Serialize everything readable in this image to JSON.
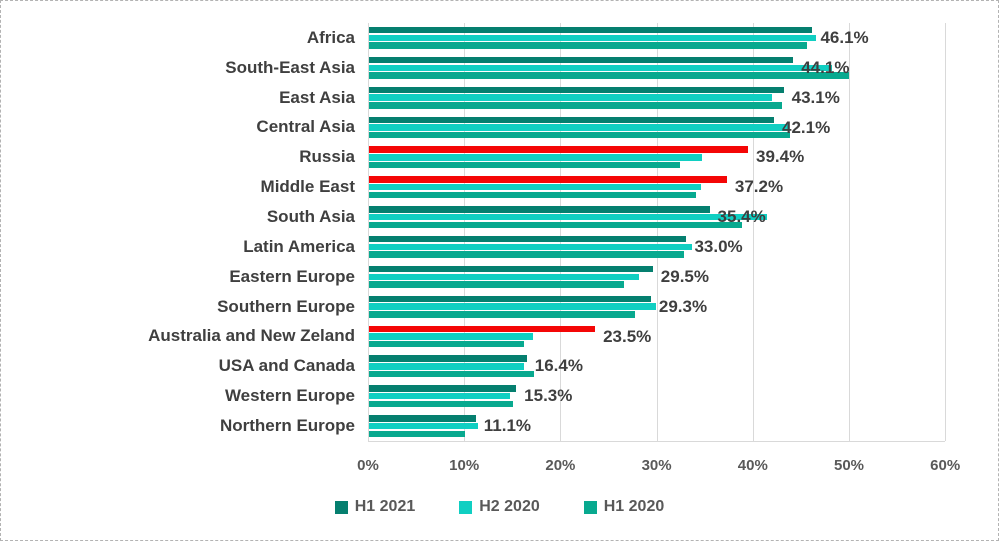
{
  "chart_data": {
    "type": "bar",
    "orientation": "horizontal",
    "title": "",
    "xlabel": "",
    "ylabel": "",
    "xlim": [
      0,
      60
    ],
    "x_ticks": [
      "0%",
      "10%",
      "20%",
      "30%",
      "40%",
      "50%",
      "60%"
    ],
    "grid": "vertical",
    "legend_position": "bottom",
    "categories": [
      "Africa",
      "South-East Asia",
      "East Asia",
      "Central Asia",
      "Russia",
      "Middle East",
      "South Asia",
      "Latin America",
      "Eastern Europe",
      "Southern Europe",
      "Australia and New Zeland",
      "USA and Canada",
      "Western Europe",
      "Northern Europe"
    ],
    "series": [
      {
        "name": "H1 2021",
        "values": [
          46.1,
          44.1,
          43.1,
          42.1,
          39.4,
          37.2,
          35.4,
          33.0,
          29.5,
          29.3,
          23.5,
          16.4,
          15.3,
          11.1
        ]
      },
      {
        "name": "H2 2020",
        "values": [
          46.5,
          48.1,
          41.9,
          43.7,
          34.6,
          34.5,
          41.4,
          33.6,
          28.1,
          29.8,
          17.0,
          16.1,
          14.7,
          11.3
        ]
      },
      {
        "name": "H1 2020",
        "values": [
          45.5,
          49.9,
          42.9,
          43.8,
          32.3,
          34.0,
          38.8,
          32.7,
          26.5,
          27.7,
          16.1,
          17.1,
          15.0,
          10.0
        ]
      }
    ],
    "data_labels": [
      "46.1%",
      "44.1%",
      "43.1%",
      "42.1%",
      "39.4%",
      "37.2%",
      "35.4%",
      "33.0%",
      "29.5%",
      "29.3%",
      "23.5%",
      "16.4%",
      "15.3%",
      "11.1%"
    ],
    "data_labels_series": "H1 2021",
    "highlighted_categories": [
      "Russia",
      "Middle East",
      "Australia and New Zeland"
    ],
    "colors": {
      "h1_2021": "#057f6f",
      "h2_2020": "#10cfc2",
      "h1_2020": "#08a98f",
      "highlight_red": "#f40606",
      "gridline": "#d9d9d9",
      "label_text": "#3f3f3f",
      "tick_text": "#595959"
    },
    "legend": [
      "H1 2021",
      "H2 2020",
      "H1 2020"
    ]
  }
}
